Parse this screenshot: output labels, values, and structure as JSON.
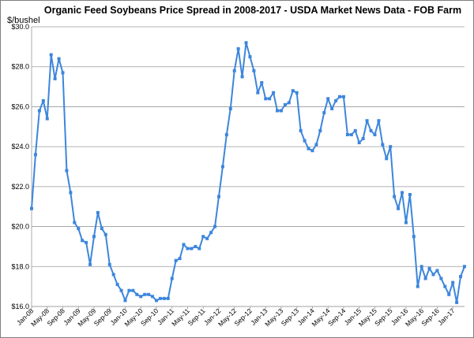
{
  "chart_data": {
    "type": "line",
    "title": "Organic Feed Soybeans Price Spread in 2008-2017 - USDA Market News Data - FOB Farm",
    "ylabel": "$/bushel",
    "xlabel": "",
    "ylim": [
      16.0,
      30.0
    ],
    "yticks": [
      "$16.0",
      "$18.0",
      "$20.0",
      "$22.0",
      "$24.0",
      "$26.0",
      "$28.0",
      "$30.0"
    ],
    "x_tick_labels": [
      "Jan-08",
      "May-08",
      "Sep-08",
      "Jan-09",
      "May-09",
      "Sep-09",
      "Jan-10",
      "May-10",
      "Sep-10",
      "Jan-11",
      "May-11",
      "Sep-11",
      "Jan-12",
      "May-12",
      "Sep-12",
      "Jan-13",
      "May-13",
      "Sep-13",
      "Jan-14",
      "May-14",
      "Sep-14",
      "Jan-15",
      "May-15",
      "Sep-15",
      "Jan-16",
      "May-16",
      "Sep-16",
      "Jan-17"
    ],
    "grid": true,
    "color": "#3c86dc",
    "series": [
      {
        "values": [
          20.9,
          23.6,
          25.8,
          26.3,
          25.4,
          28.6,
          27.4,
          28.4,
          27.7,
          22.8,
          21.7,
          20.2,
          19.9,
          19.3,
          19.2,
          18.1,
          19.5,
          20.7,
          19.9,
          19.6,
          18.1,
          17.6,
          17.1,
          16.8,
          16.3,
          16.8,
          16.8,
          16.6,
          16.5,
          16.6,
          16.6,
          16.5,
          16.3,
          16.4,
          16.4,
          16.4,
          17.4,
          18.3,
          18.4,
          19.1,
          18.9,
          18.9,
          19.0,
          18.9,
          19.5,
          19.4,
          19.7,
          20.0,
          21.5,
          23.0,
          24.6,
          25.9,
          27.8,
          28.9,
          27.5,
          29.2,
          28.5,
          27.8,
          26.7,
          27.2,
          26.4,
          26.4,
          26.7,
          25.8,
          25.8,
          26.1,
          26.2,
          26.8,
          26.7,
          24.8,
          24.3,
          23.9,
          23.8,
          24.1,
          24.8,
          25.7,
          26.4,
          25.9,
          26.3,
          26.5,
          26.5,
          24.6,
          24.6,
          24.8,
          24.2,
          24.4,
          25.3,
          24.8,
          24.6,
          25.3,
          24.1,
          23.4,
          24.0,
          21.5,
          20.9,
          21.7,
          20.2,
          21.6,
          19.5,
          17.0,
          18.0,
          17.4,
          17.9,
          17.6,
          17.8,
          17.4,
          17.0,
          16.6,
          17.2,
          16.2,
          17.5,
          18.0
        ]
      }
    ]
  }
}
